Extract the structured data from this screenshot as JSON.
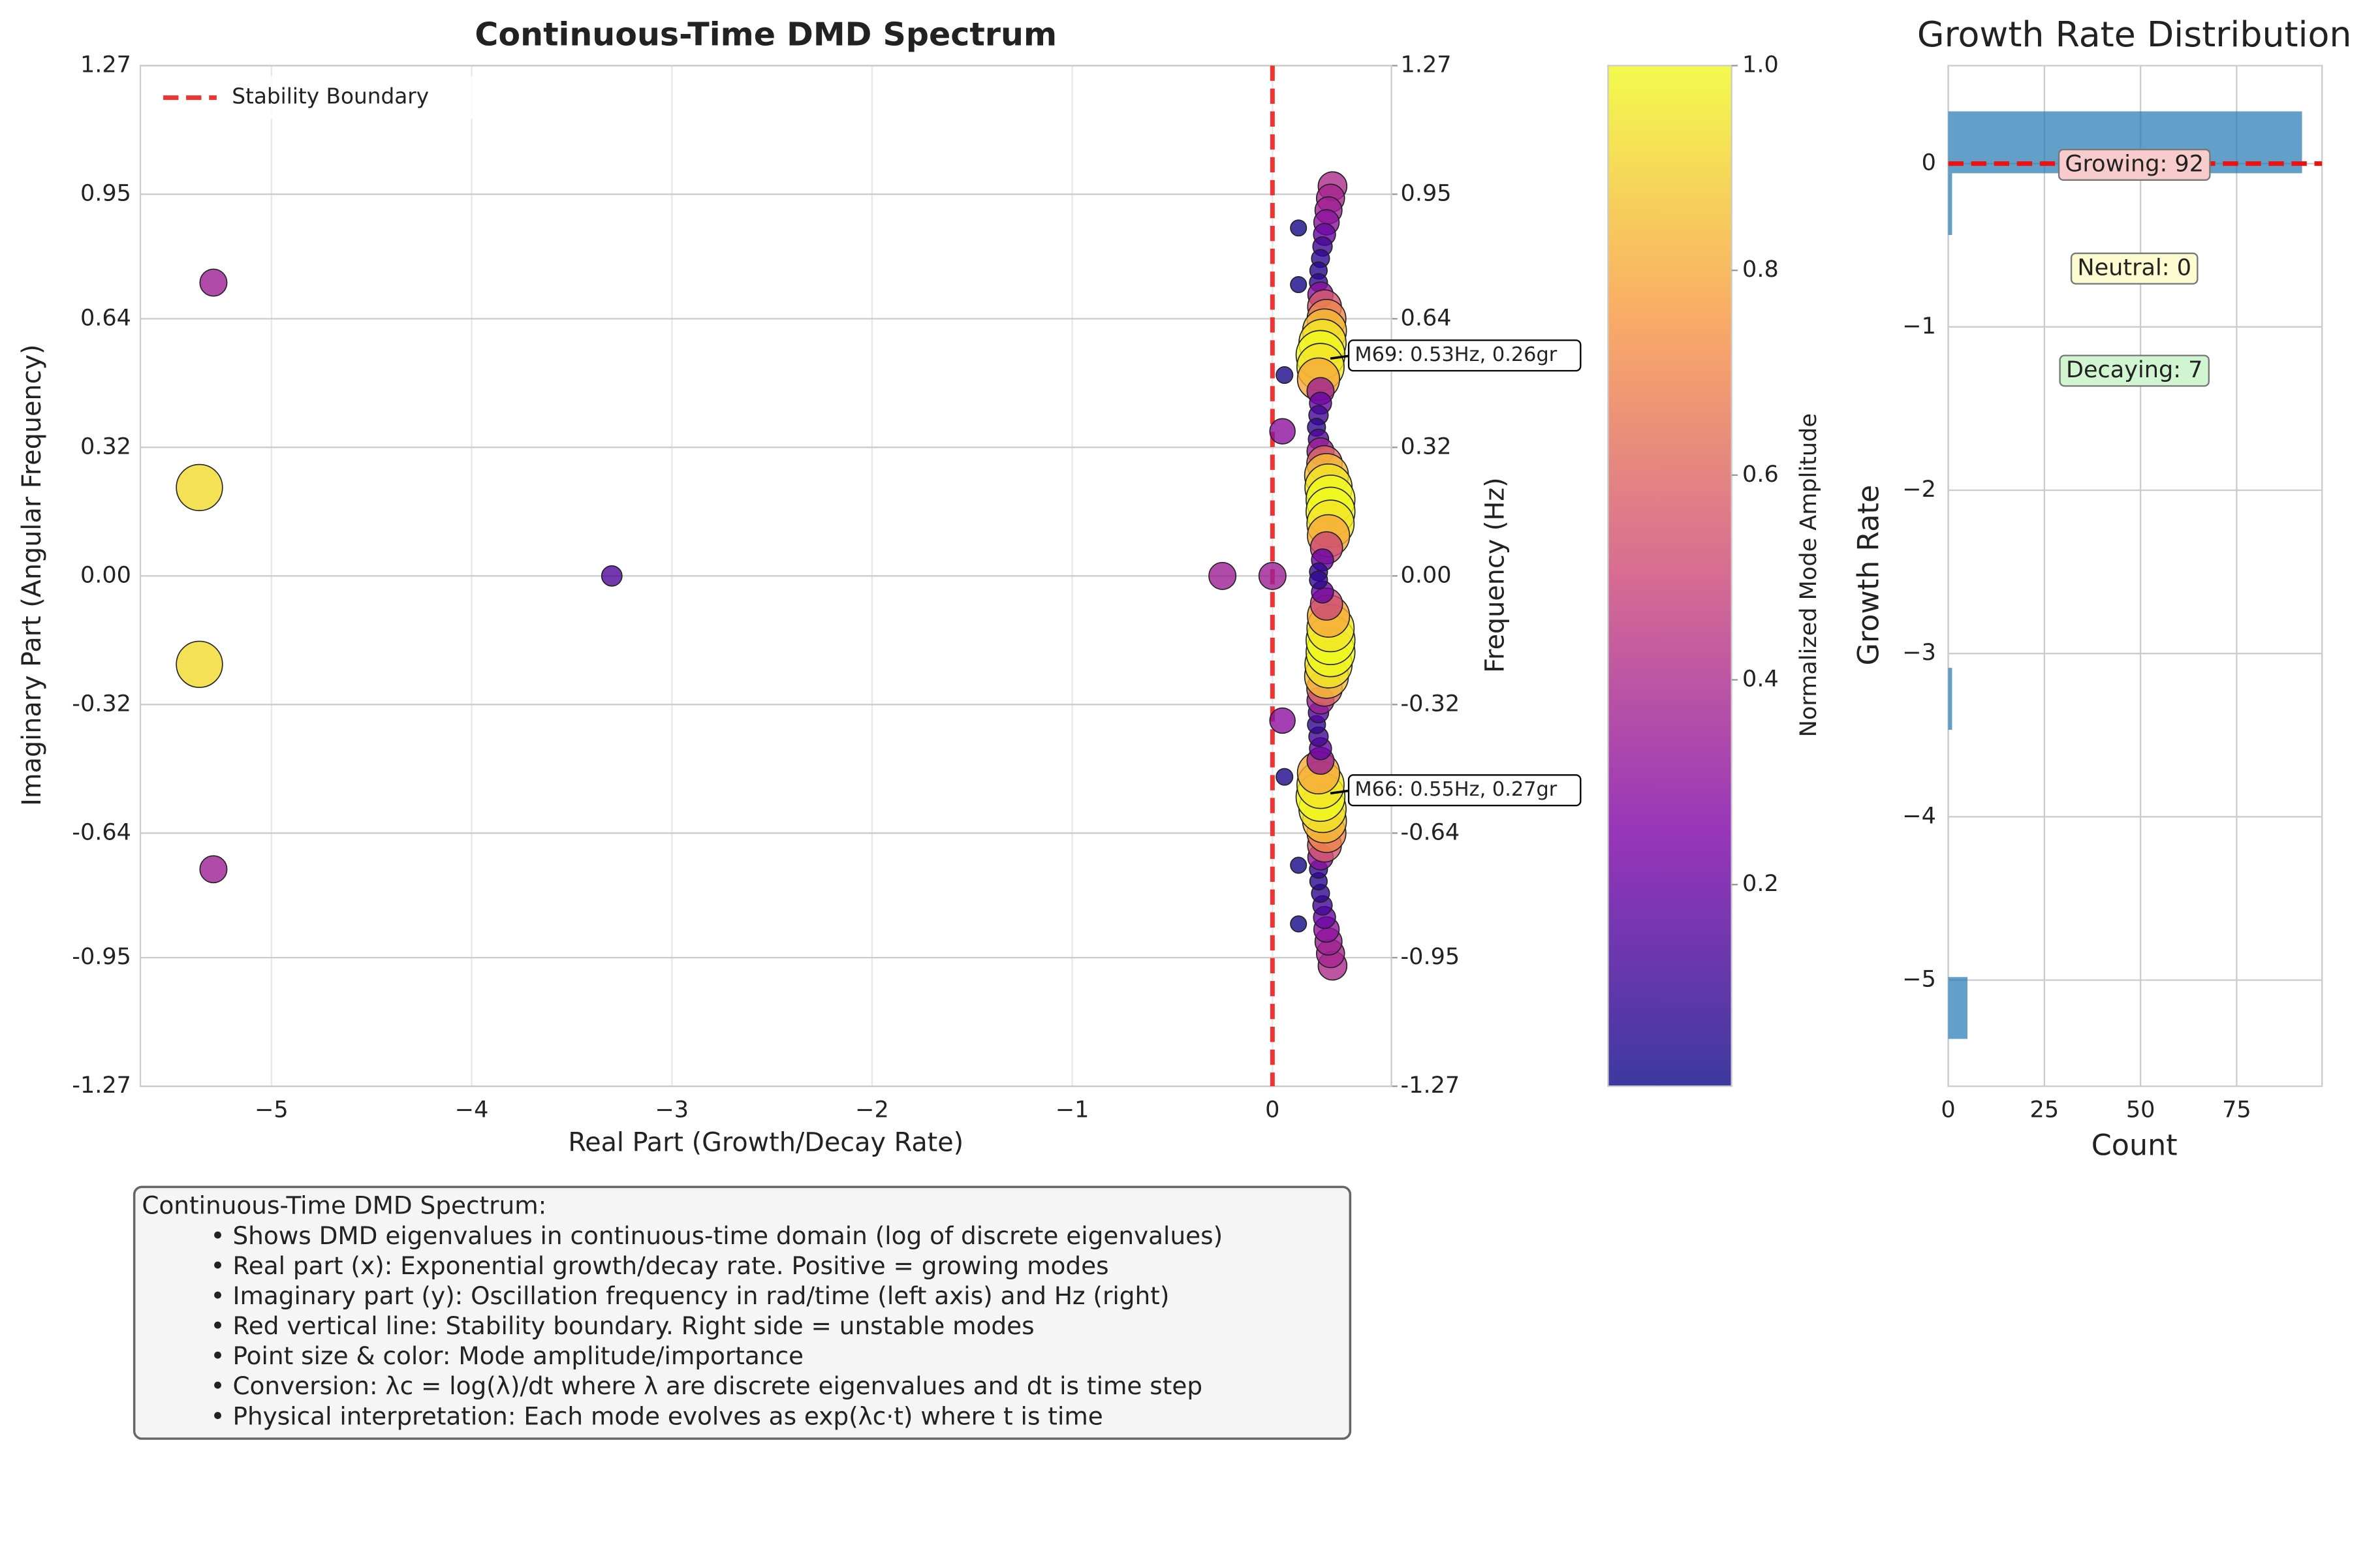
{
  "chart_data": [
    {
      "type": "scatter",
      "title": "Continuous-Time DMD Spectrum",
      "xlabel": "Real Part (Growth/Decay Rate)",
      "ylabel": "Imaginary Part (Angular Frequency)",
      "y2label": "Frequency (Hz)",
      "xlim": [
        -5.655,
        0.594
      ],
      "ylim": [
        -1.27,
        1.27
      ],
      "y2lim": [
        -1.27,
        1.27
      ],
      "xticks": [
        {
          "value": -5,
          "label": "−5"
        },
        {
          "value": -4,
          "label": "−4"
        },
        {
          "value": -3,
          "label": "−3"
        },
        {
          "value": -2,
          "label": "−2"
        },
        {
          "value": -1,
          "label": "−1"
        },
        0
      ],
      "yticks": [
        {
          "value": -1.27,
          "label": "-1.27"
        },
        {
          "value": -0.95,
          "label": "-0.95"
        },
        {
          "value": -0.64,
          "label": "-0.64"
        },
        {
          "value": -0.32,
          "label": "-0.32"
        },
        {
          "value": 0,
          "label": "0.00"
        },
        {
          "value": 0.32,
          "label": "0.32"
        },
        {
          "value": 0.64,
          "label": "0.64"
        },
        {
          "value": 0.95,
          "label": "0.95"
        },
        {
          "value": 1.27,
          "label": "1.27"
        }
      ],
      "y2ticks": [
        {
          "value": -1.27,
          "label": "-1.27"
        },
        {
          "value": -0.95,
          "label": "-0.95"
        },
        {
          "value": -0.64,
          "label": "-0.64"
        },
        {
          "value": -0.32,
          "label": "-0.32"
        },
        {
          "value": 0,
          "label": "0.00"
        },
        {
          "value": 0.32,
          "label": "0.32"
        },
        {
          "value": 0.64,
          "label": "0.64"
        },
        {
          "value": 0.95,
          "label": "0.95"
        },
        {
          "value": 1.27,
          "label": "1.27"
        }
      ],
      "grid": true,
      "cmap": "plasma",
      "x": [
        0.3,
        0.29,
        0.28,
        0.27,
        0.26,
        0.25,
        0.24,
        0.23,
        0.23,
        0.24,
        0.26,
        0.27,
        0.26,
        0.25,
        0.24,
        0.24,
        0.23,
        0.24,
        0.24,
        0.23,
        0.22,
        0.23,
        0.24,
        0.26,
        0.27,
        0.28,
        0.29,
        0.29,
        0.29,
        0.28,
        0.27,
        0.25,
        0.23,
        0.3,
        0.29,
        0.28,
        0.27,
        0.26,
        0.25,
        0.24,
        0.23,
        0.23,
        0.24,
        0.26,
        0.27,
        0.26,
        0.25,
        0.24,
        0.24,
        0.23,
        0.24,
        0.24,
        0.23,
        0.22,
        0.23,
        0.24,
        0.26,
        0.27,
        0.28,
        0.29,
        0.29,
        0.29,
        0.28,
        0.27,
        0.25,
        0.23,
        0.13,
        0.13,
        0.06,
        0.05,
        0.13,
        0.13,
        0.06,
        0.05,
        -5.29,
        -5.36,
        -5.36,
        -5.29,
        -3.3,
        -0.25,
        0.0
      ],
      "values": [
        0.97,
        0.94,
        0.91,
        0.88,
        0.85,
        0.82,
        0.79,
        0.76,
        0.73,
        0.7,
        0.67,
        0.64,
        0.61,
        0.58,
        0.55,
        0.52,
        0.49,
        0.46,
        0.43,
        0.4,
        0.37,
        0.34,
        0.31,
        0.28,
        0.25,
        0.22,
        0.19,
        0.16,
        0.13,
        0.1,
        0.07,
        0.04,
        0.01,
        -0.97,
        -0.94,
        -0.91,
        -0.88,
        -0.85,
        -0.82,
        -0.79,
        -0.76,
        -0.73,
        -0.7,
        -0.67,
        -0.64,
        -0.61,
        -0.58,
        -0.55,
        -0.52,
        -0.49,
        -0.46,
        -0.43,
        -0.4,
        -0.37,
        -0.34,
        -0.31,
        -0.28,
        -0.25,
        -0.22,
        -0.19,
        -0.16,
        -0.13,
        -0.1,
        -0.07,
        -0.04,
        -0.01,
        0.866,
        0.725,
        0.5,
        0.36,
        -0.866,
        -0.72,
        -0.5,
        -0.36,
        0.73,
        0.22,
        -0.22,
        -0.73,
        0.0,
        0.0,
        0.0
      ],
      "sizes": [
        0.4,
        0.38,
        0.35,
        0.3,
        0.2,
        0.12,
        0.08,
        0.06,
        0.08,
        0.3,
        0.55,
        0.7,
        0.85,
        0.95,
        1.0,
        0.95,
        0.8,
        0.35,
        0.2,
        0.12,
        0.08,
        0.15,
        0.35,
        0.6,
        0.85,
        0.95,
        1.0,
        1.0,
        0.95,
        0.8,
        0.5,
        0.2,
        0.08,
        0.4,
        0.38,
        0.35,
        0.3,
        0.2,
        0.12,
        0.08,
        0.06,
        0.08,
        0.3,
        0.55,
        0.7,
        0.85,
        0.95,
        1.0,
        0.95,
        0.8,
        0.35,
        0.2,
        0.12,
        0.08,
        0.15,
        0.35,
        0.6,
        0.85,
        0.95,
        1.0,
        1.0,
        0.95,
        0.8,
        0.5,
        0.2,
        0.08,
        0.02,
        0.02,
        0.04,
        0.3,
        0.02,
        0.02,
        0.04,
        0.3,
        0.35,
        0.92,
        0.92,
        0.35,
        0.15,
        0.35,
        0.35
      ],
      "stability_line": {
        "name": "Stability Boundary",
        "x": 0,
        "color": "#ee3333"
      },
      "legend": "upper left",
      "colorbar": {
        "label": "Normalized Mode Amplitude",
        "lim": [
          0.003,
          1.0
        ],
        "ticks": [
          0.2,
          0.4,
          0.6,
          0.8,
          {
            "value": 1.0,
            "label": "1.0"
          }
        ]
      },
      "annotations": [
        "M69: 0.53Hz, 0.26gr",
        "M66: 0.55Hz, 0.27gr"
      ],
      "text_box": {
        "title": "Continuous-Time DMD Spectrum:",
        "lines": [
          "• Shows DMD eigenvalues in continuous-time domain (log of discrete eigenvalues)",
          "• Real part (x): Exponential growth/decay rate. Positive = growing modes",
          "• Imaginary part (y): Oscillation frequency in rad/time (left axis) and Hz (right)",
          "• Red vertical line: Stability boundary. Right side = unstable modes",
          "• Point size & color: Mode amplitude/importance",
          "• Conversion: λc = log(λ)/dt where λ are discrete eigenvalues and dt is time step",
          "• Physical interpretation: Each mode evolves as exp(λc·t) where t is time"
        ]
      }
    },
    {
      "type": "histogram",
      "orientation": "horizontal",
      "title": "Growth Rate Distribution",
      "xlabel": "Count",
      "ylabel": "Growth Rate",
      "color": "#1f77b4",
      "bins": [
        -5.36,
        -4.981,
        -4.603,
        -4.224,
        -3.845,
        -3.467,
        -3.088,
        -2.709,
        -2.331,
        -1.952,
        -1.573,
        -1.195,
        -0.816,
        -0.437,
        -0.059,
        0.32
      ],
      "values": [
        5,
        0,
        0,
        0,
        0,
        1,
        0,
        0,
        0,
        0,
        0,
        0,
        0,
        1,
        92
      ],
      "xlim": [
        0,
        97.2
      ],
      "ylim": [
        -5.65,
        0.6
      ],
      "xticks": [
        0,
        25,
        50,
        75
      ],
      "yticks": [
        {
          "value": -5,
          "label": "−5"
        },
        {
          "value": -4,
          "label": "−4"
        },
        {
          "value": -3,
          "label": "−3"
        },
        {
          "value": -2,
          "label": "−2"
        },
        {
          "value": -1,
          "label": "−1"
        },
        0
      ],
      "grid": true,
      "hline": 0,
      "annotations": [
        "Growing: 92",
        "Neutral: 0",
        "Decaying: 7"
      ]
    }
  ]
}
